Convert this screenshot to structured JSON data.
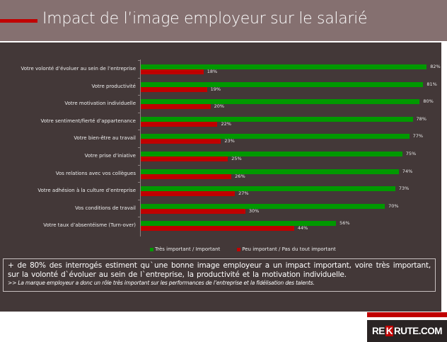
{
  "header": {
    "title": "Impact de l’image employeur sur le salarié"
  },
  "colors": {
    "header_bg": "#857070",
    "panel_bg": "#433838",
    "accent_red": "#c00000",
    "series_green": "#009900",
    "series_red": "#c00000"
  },
  "chart_data": {
    "type": "bar",
    "orientation": "horizontal",
    "title": "Impact de l’image employeur sur le salarié",
    "xlabel": "",
    "ylabel": "",
    "grid": false,
    "legend_position": "bottom",
    "categories": [
      "Votre volonté d’évoluer au sein de l’entreprise",
      "Votre productivité",
      "Votre motivation individuelle",
      "Votre sentiment/fierté d’appartenance",
      "Votre bien-être au travail",
      "Votre prise d’iniative",
      "Vos relations avec vos collègues",
      "Votre adhésion à la culture d’entreprise",
      "Vos conditions de travail",
      "Votre taux d’absentéisme (Turn-over)"
    ],
    "series": [
      {
        "name": "Très important / Important",
        "color": "#009900",
        "values": [
          82,
          81,
          80,
          78,
          77,
          75,
          74,
          73,
          70,
          56
        ],
        "labels": [
          "82%",
          "81%",
          "80%",
          "78%",
          "77%",
          "75%",
          "74%",
          "73%",
          "70%",
          "56%"
        ]
      },
      {
        "name": "Peu important / Pas du tout important",
        "color": "#c00000",
        "values": [
          18,
          19,
          20,
          22,
          23,
          25,
          26,
          27,
          30,
          44
        ],
        "labels": [
          "18%",
          "19%",
          "20%",
          "22%",
          "23%",
          "25%",
          "26%",
          "27%",
          "30%",
          "44%"
        ]
      }
    ],
    "xlim": [
      0,
      100
    ]
  },
  "legend": {
    "green_label": "Très important / Important",
    "red_label": "Peu important / Pas du tout important"
  },
  "note": {
    "main": "+ de 80% des interrogés estiment quˋune bonne image employeur a un impact important, voire très important, sur la volonté dˋévoluer au sein de lˋentreprise, la productivité et la motivation individuelle.",
    "sub": ">> La marque employeur a donc un rôle très important  sur les performances de l’entreprise et la  fidélisation des talents."
  },
  "logo": {
    "pre": "RE",
    "k": "K",
    "post": "RUTE.COM"
  }
}
